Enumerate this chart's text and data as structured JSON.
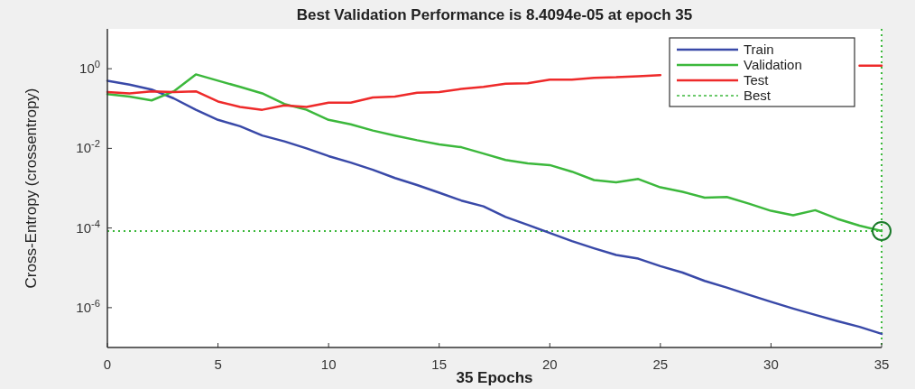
{
  "chart_data": {
    "type": "line",
    "title": "Best Validation Performance is 8.4094e-05 at epoch 35",
    "xlabel": "35 Epochs",
    "ylabel": "Cross-Entropy  (crossentropy)",
    "x": [
      0,
      1,
      2,
      3,
      4,
      5,
      6,
      7,
      8,
      9,
      10,
      11,
      12,
      13,
      14,
      15,
      16,
      17,
      18,
      19,
      20,
      21,
      22,
      23,
      24,
      25,
      26,
      27,
      28,
      29,
      30,
      31,
      32,
      33,
      34,
      35
    ],
    "series": [
      {
        "name": "Train",
        "color": "#3949a8",
        "values": [
          0.5,
          0.4,
          0.3,
          0.18,
          0.093,
          0.052,
          0.036,
          0.021,
          0.015,
          0.01,
          0.0064,
          0.0044,
          0.0029,
          0.0018,
          0.0012,
          0.00077,
          0.00049,
          0.00035,
          0.00019,
          0.00012,
          7.5e-05,
          4.7e-05,
          3.1e-05,
          2.1e-05,
          1.7e-05,
          1.1e-05,
          7.6e-06,
          4.7e-06,
          3.2e-06,
          2.1e-06,
          1.4e-06,
          9.5e-07,
          6.6e-07,
          4.6e-07,
          3.3e-07,
          2.2e-07
        ]
      },
      {
        "name": "Validation",
        "color": "#3cb83c",
        "values": [
          0.23,
          0.2,
          0.16,
          0.27,
          0.72,
          0.5,
          0.35,
          0.24,
          0.13,
          0.093,
          0.052,
          0.04,
          0.028,
          0.021,
          0.016,
          0.0126,
          0.0107,
          0.0074,
          0.0051,
          0.0042,
          0.0038,
          0.0026,
          0.0016,
          0.0014,
          0.0017,
          0.00105,
          0.00081,
          0.00058,
          0.0006,
          0.00041,
          0.00027,
          0.00021,
          0.00028,
          0.00017,
          0.000115,
          8.4094e-05
        ]
      },
      {
        "name": "Test",
        "color": "#ee2a2a",
        "values": [
          0.26,
          0.24,
          0.27,
          0.26,
          0.27,
          0.15,
          0.11,
          0.093,
          0.12,
          0.11,
          0.14,
          0.14,
          0.19,
          0.2,
          0.25,
          0.26,
          0.31,
          0.35,
          0.42,
          0.43,
          0.53,
          0.53,
          0.59,
          0.61,
          0.65,
          0.69,
          null,
          null,
          null,
          null,
          null,
          null,
          null,
          null,
          1.2,
          1.2
        ]
      },
      {
        "type": "scatter",
        "color": "#1a7a2a",
        "marker": "circle",
        "x": [
          35
        ],
        "values": [
          8.4094e-05
        ]
      }
    ],
    "ref_lines": [
      {
        "axis": "y",
        "value": 8.4094e-05,
        "label": "Best",
        "color": "#3cb83c",
        "line_style": "dotted"
      },
      {
        "axis": "x",
        "value": 35,
        "color": "#3cb83c",
        "line_style": "dotted"
      }
    ],
    "log": "y",
    "xlim": [
      0,
      35
    ],
    "ylim": [
      1e-07,
      10
    ],
    "xticks": [
      0,
      5,
      10,
      15,
      20,
      25,
      30,
      35
    ],
    "yticks": [
      {
        "value": 1,
        "label": "10$^{0}$"
      },
      {
        "value": 0.01,
        "label": "10$^{-2}$"
      },
      {
        "value": 0.0001,
        "label": "10$^{-4}$"
      },
      {
        "value": 1e-06,
        "label": "10$^{-6}$"
      }
    ],
    "grid": false,
    "legend": "top right",
    "marker": "none",
    "line_style": "solid"
  }
}
